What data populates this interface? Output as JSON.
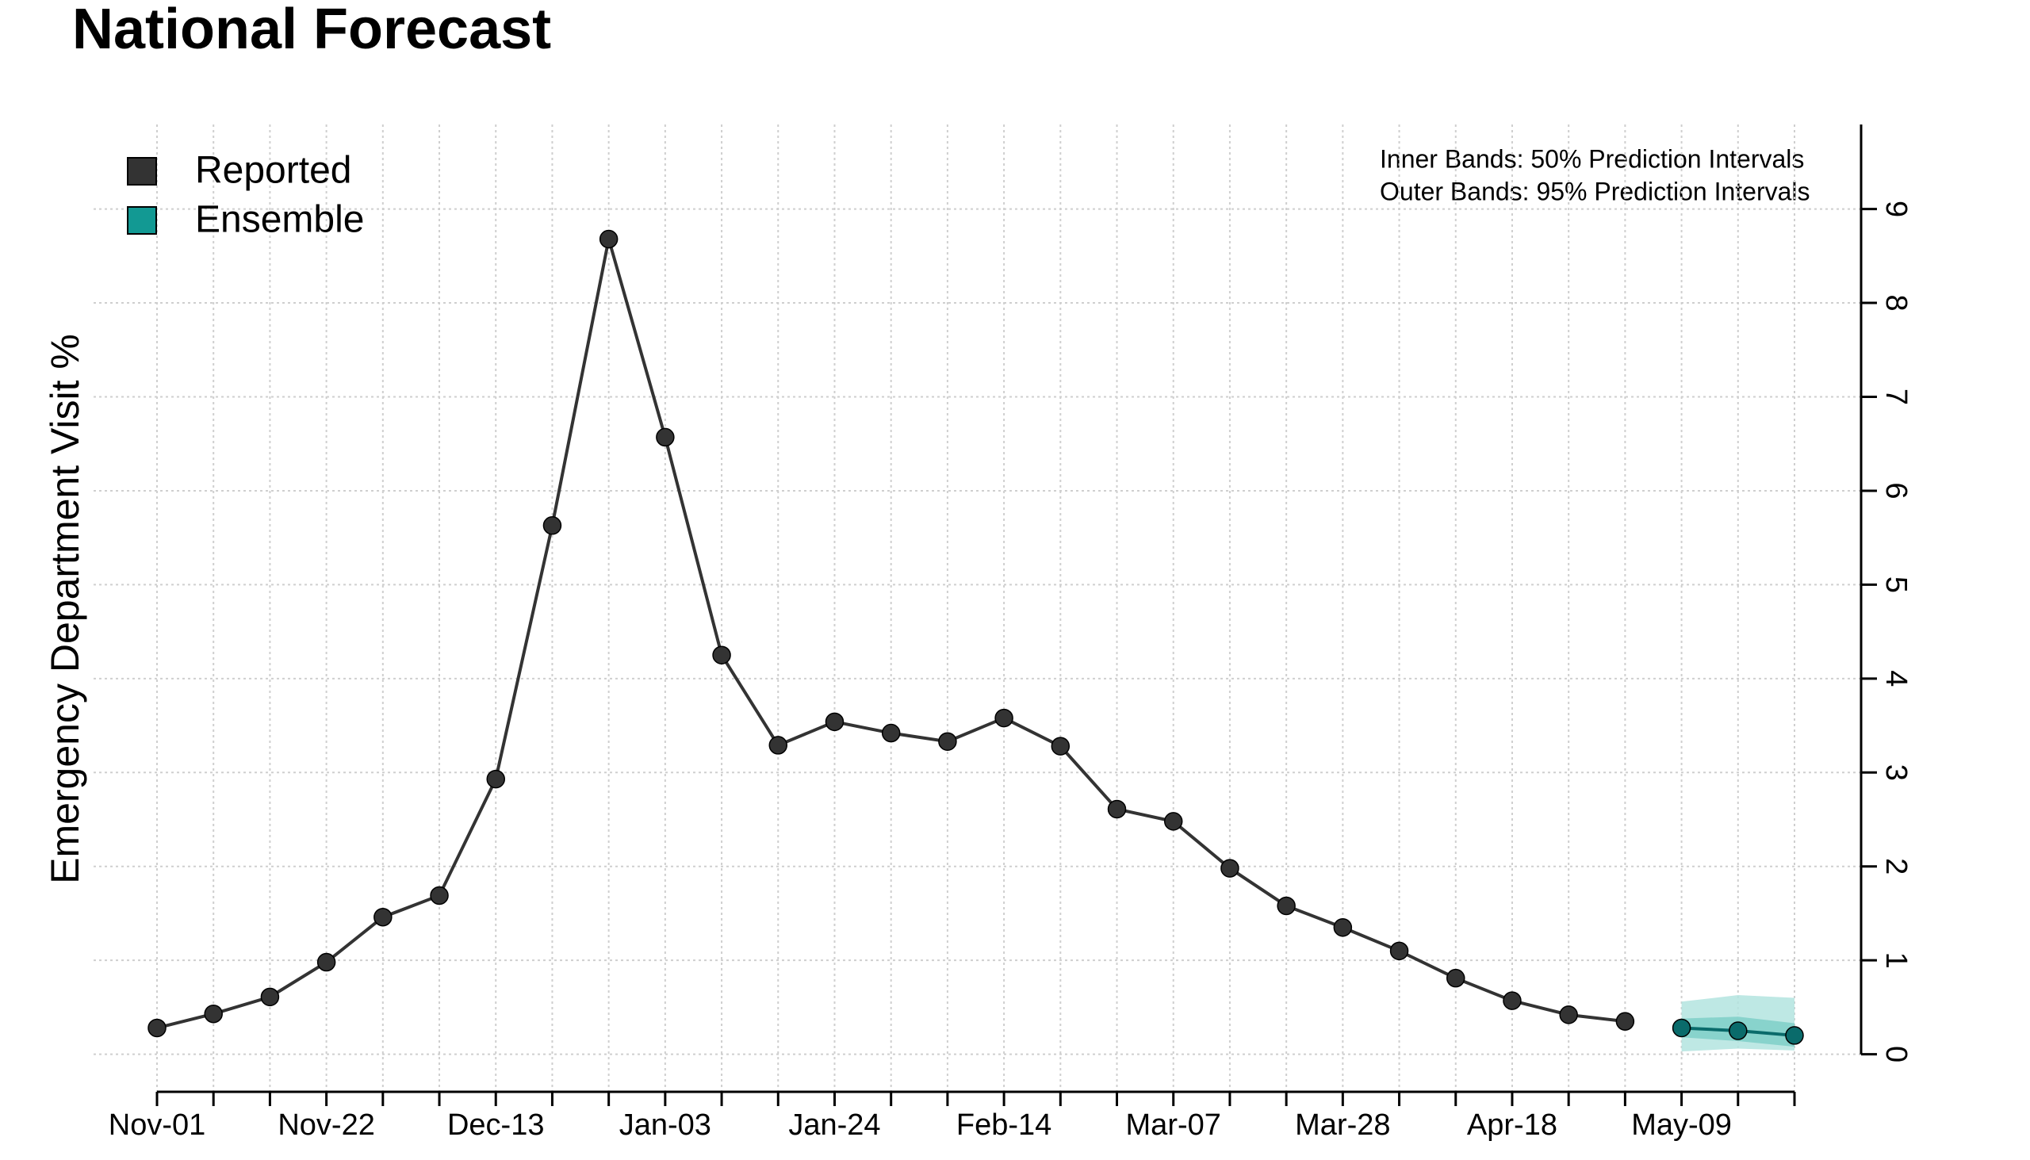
{
  "chart_data": {
    "type": "line",
    "title": "National Forecast",
    "ylabel": "Emergency Department Visit %",
    "annotations": [
      "Inner Bands: 50% Prediction Intervals",
      "Outer Bands: 95% Prediction Intervals"
    ],
    "categories": [
      "Nov-01",
      null,
      null,
      "Nov-22",
      null,
      null,
      "Dec-13",
      null,
      null,
      "Jan-03",
      null,
      null,
      "Jan-24",
      null,
      null,
      "Feb-14",
      null,
      null,
      "Mar-07",
      null,
      null,
      "Mar-28",
      null,
      null,
      "Apr-18",
      null,
      null,
      "May-09",
      null,
      null
    ],
    "series": [
      {
        "name": "Reported",
        "color": "#333333",
        "values": [
          0.28,
          0.43,
          0.61,
          0.98,
          1.46,
          1.69,
          2.93,
          5.63,
          8.68,
          6.57,
          4.25,
          3.29,
          3.54,
          3.42,
          3.33,
          3.58,
          3.28,
          2.61,
          2.48,
          1.98,
          1.58,
          1.35,
          1.1,
          0.81,
          0.57,
          0.42,
          0.35,
          null,
          null,
          null
        ]
      },
      {
        "name": "Ensemble",
        "color": "#0a6b6b",
        "legend_color": "#129993",
        "band_color_50": "#7fcfc8",
        "band_color_95": "#b3e4df",
        "values": [
          null,
          null,
          null,
          null,
          null,
          null,
          null,
          null,
          null,
          null,
          null,
          null,
          null,
          null,
          null,
          null,
          null,
          null,
          null,
          null,
          null,
          null,
          null,
          null,
          null,
          null,
          null,
          0.28,
          0.25,
          0.2
        ],
        "lower_95": [
          null,
          null,
          null,
          null,
          null,
          null,
          null,
          null,
          null,
          null,
          null,
          null,
          null,
          null,
          null,
          null,
          null,
          null,
          null,
          null,
          null,
          null,
          null,
          null,
          null,
          null,
          null,
          0.03,
          0.06,
          0.04
        ],
        "upper_95": [
          null,
          null,
          null,
          null,
          null,
          null,
          null,
          null,
          null,
          null,
          null,
          null,
          null,
          null,
          null,
          null,
          null,
          null,
          null,
          null,
          null,
          null,
          null,
          null,
          null,
          null,
          null,
          0.56,
          0.63,
          0.6
        ],
        "lower_50": [
          null,
          null,
          null,
          null,
          null,
          null,
          null,
          null,
          null,
          null,
          null,
          null,
          null,
          null,
          null,
          null,
          null,
          null,
          null,
          null,
          null,
          null,
          null,
          null,
          null,
          null,
          null,
          0.18,
          0.14,
          0.08
        ],
        "upper_50": [
          null,
          null,
          null,
          null,
          null,
          null,
          null,
          null,
          null,
          null,
          null,
          null,
          null,
          null,
          null,
          null,
          null,
          null,
          null,
          null,
          null,
          null,
          null,
          null,
          null,
          null,
          null,
          0.38,
          0.4,
          0.33
        ]
      }
    ],
    "ylim": [
      -0.4,
      9.9
    ],
    "yticks": [
      0,
      1,
      2,
      3,
      4,
      5,
      6,
      7,
      8,
      9
    ],
    "grid": true,
    "legend": "upper left"
  }
}
